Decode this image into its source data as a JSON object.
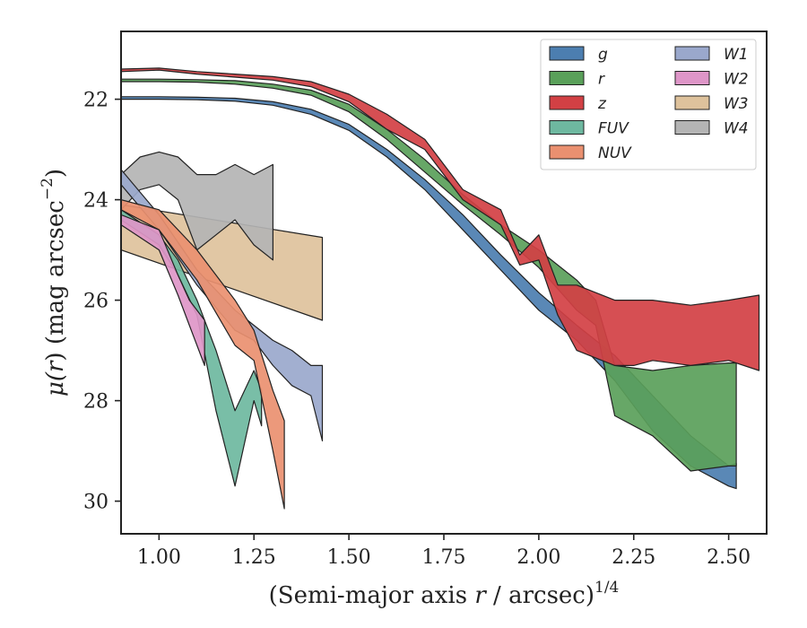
{
  "chart_data": {
    "type": "area",
    "xlabel": "(Semi-major axis r / arcsec)",
    "xlabel_parts": [
      "(Semi-major axis ",
      "r",
      " / arcsec)",
      "1/4"
    ],
    "ylabel": "μ(r) (mag arcsec⁻²)",
    "ylabel_parts": [
      "μ(",
      "r",
      ") (mag arcsec",
      "−2",
      ")"
    ],
    "xlim": [
      0.9,
      2.6
    ],
    "ylim": [
      30.65,
      20.65
    ],
    "y_inverted": true,
    "xticks": [
      1.0,
      1.25,
      1.5,
      1.75,
      2.0,
      2.25,
      2.5
    ],
    "xtick_labels": [
      "1.00",
      "1.25",
      "1.50",
      "1.75",
      "2.00",
      "2.25",
      "2.50"
    ],
    "yticks": [
      22,
      24,
      26,
      28,
      30
    ],
    "ytick_labels": [
      "22",
      "24",
      "26",
      "28",
      "30"
    ],
    "grid": false,
    "legend_position": "top-right",
    "legend_columns": 2,
    "series": [
      {
        "name": "g",
        "color": "#4c7eb0",
        "x": [
          0.9,
          1.0,
          1.1,
          1.2,
          1.3,
          1.4,
          1.5,
          1.6,
          1.7,
          1.8,
          1.9,
          2.0,
          2.1,
          2.2,
          2.3,
          2.4,
          2.5,
          2.52
        ],
        "y_upper": [
          21.95,
          21.95,
          21.96,
          21.98,
          22.05,
          22.2,
          22.5,
          23.0,
          23.6,
          24.3,
          25.1,
          25.85,
          26.5,
          27.1,
          27.9,
          28.7,
          29.3,
          29.25
        ],
        "y_lower": [
          22.0,
          22.0,
          22.01,
          22.04,
          22.12,
          22.3,
          22.62,
          23.15,
          23.8,
          24.6,
          25.4,
          26.2,
          26.8,
          27.6,
          28.6,
          29.3,
          29.7,
          29.75
        ]
      },
      {
        "name": "r",
        "color": "#5aa05a",
        "x": [
          0.9,
          1.0,
          1.1,
          1.2,
          1.3,
          1.4,
          1.5,
          1.6,
          1.7,
          1.8,
          1.9,
          2.0,
          2.1,
          2.15,
          2.2,
          2.3,
          2.4,
          2.5,
          2.52
        ],
        "y_upper": [
          21.6,
          21.6,
          21.61,
          21.63,
          21.7,
          21.82,
          22.1,
          22.6,
          23.2,
          23.9,
          24.5,
          25.0,
          25.6,
          26.0,
          27.3,
          27.4,
          27.3,
          27.25,
          27.25
        ],
        "y_lower": [
          21.65,
          21.65,
          21.66,
          21.7,
          21.78,
          21.92,
          22.25,
          22.8,
          23.45,
          24.1,
          24.7,
          25.35,
          26.2,
          26.5,
          28.3,
          28.7,
          29.4,
          29.3,
          29.3
        ]
      },
      {
        "name": "z",
        "color": "#d24044",
        "x": [
          0.9,
          1.0,
          1.1,
          1.2,
          1.3,
          1.4,
          1.5,
          1.6,
          1.7,
          1.8,
          1.9,
          1.95,
          2.0,
          2.05,
          2.1,
          2.2,
          2.25,
          2.3,
          2.4,
          2.5,
          2.58
        ],
        "y_upper": [
          21.4,
          21.38,
          21.45,
          21.5,
          21.55,
          21.65,
          21.9,
          22.3,
          22.8,
          23.8,
          24.2,
          25.1,
          24.7,
          25.7,
          25.7,
          26.0,
          26.0,
          26.0,
          26.1,
          26.0,
          25.9
        ],
        "y_lower": [
          21.45,
          21.42,
          21.5,
          21.56,
          21.62,
          21.75,
          22.05,
          22.6,
          23.0,
          24.0,
          24.5,
          25.3,
          25.2,
          26.3,
          27.0,
          27.3,
          27.3,
          27.2,
          27.3,
          27.2,
          27.4
        ]
      },
      {
        "name": "FUV",
        "color": "#6eb8a0",
        "x": [
          0.9,
          1.0,
          1.05,
          1.1,
          1.15,
          1.2,
          1.25,
          1.27
        ],
        "y_upper": [
          24.2,
          24.7,
          25.2,
          26.0,
          27.0,
          28.2,
          27.4,
          27.8
        ],
        "y_lower": [
          24.4,
          24.9,
          25.5,
          26.3,
          28.2,
          29.7,
          28.0,
          28.5
        ]
      },
      {
        "name": "NUV",
        "color": "#ea9070",
        "x": [
          0.9,
          1.0,
          1.1,
          1.2,
          1.25,
          1.3,
          1.33
        ],
        "y_upper": [
          24.0,
          24.2,
          25.0,
          26.0,
          26.6,
          27.8,
          28.4
        ],
        "y_lower": [
          24.2,
          24.6,
          25.6,
          26.9,
          27.2,
          29.0,
          30.15
        ]
      },
      {
        "name": "W1",
        "color": "#9aa8cc",
        "x": [
          0.9,
          1.0,
          1.1,
          1.2,
          1.25,
          1.3,
          1.35,
          1.4,
          1.43
        ],
        "y_upper": [
          23.4,
          24.3,
          25.4,
          26.2,
          26.5,
          26.8,
          27.0,
          27.3,
          27.3
        ],
        "y_lower": [
          23.7,
          24.6,
          25.7,
          26.6,
          26.8,
          27.3,
          27.7,
          27.9,
          28.8
        ]
      },
      {
        "name": "W2",
        "color": "#de96c8",
        "x": [
          0.9,
          1.0,
          1.05,
          1.08,
          1.12
        ],
        "y_upper": [
          24.3,
          24.6,
          25.5,
          26.0,
          26.4
        ],
        "y_lower": [
          24.5,
          25.0,
          25.9,
          26.5,
          27.3
        ]
      },
      {
        "name": "W3",
        "color": "#dec29c",
        "x": [
          0.9,
          1.43
        ],
        "y_upper": [
          24.1,
          24.75
        ],
        "y_lower": [
          25.0,
          26.4
        ]
      },
      {
        "name": "W4",
        "color": "#b4b4b4",
        "x": [
          0.9,
          0.95,
          1.0,
          1.05,
          1.1,
          1.15,
          1.2,
          1.25,
          1.3
        ],
        "y_upper": [
          23.5,
          23.15,
          23.05,
          23.15,
          23.5,
          23.5,
          23.3,
          23.5,
          23.3
        ],
        "y_lower": [
          24.2,
          23.8,
          23.7,
          24.0,
          25.0,
          24.7,
          24.4,
          24.9,
          25.2
        ]
      }
    ]
  }
}
